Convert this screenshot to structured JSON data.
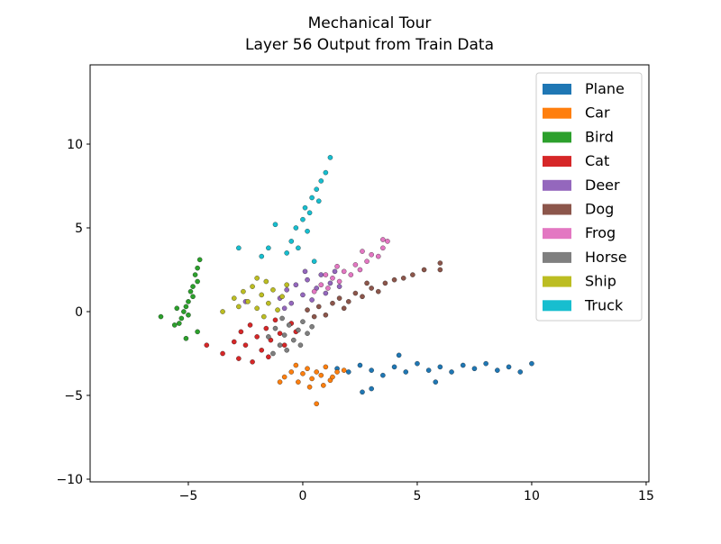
{
  "chart_data": {
    "type": "scatter",
    "title": "Mechanical Tour",
    "subtitle": "Layer 56 Output from Train Data",
    "xlim": [
      -9.29,
      15.12
    ],
    "ylim": [
      -10.16,
      14.73
    ],
    "xticks": [
      {
        "value": -5,
        "label": "−5"
      },
      0,
      5,
      10,
      15
    ],
    "yticks": [
      {
        "value": -10,
        "label": "−10"
      },
      {
        "value": -5,
        "label": "−5"
      },
      0,
      5,
      10
    ],
    "legend": "upper right",
    "series": [
      {
        "name": "Plane",
        "color": "#1f77b4",
        "x": [
          1.5,
          2,
          2.5,
          3,
          3.5,
          4,
          4.5,
          5,
          5.5,
          6,
          6.5,
          7,
          7.5,
          8,
          8.5,
          9,
          10,
          3,
          4.2,
          5.8,
          2.6,
          9.5
        ],
        "y": [
          -3.4,
          -3.6,
          -3.2,
          -3.5,
          -3.8,
          -3.3,
          -3.6,
          -3.1,
          -3.5,
          -3.3,
          -3.6,
          -3.2,
          -3.4,
          -3.1,
          -3.5,
          -3.3,
          -3.1,
          -4.6,
          -2.6,
          -4.2,
          -4.8,
          -3.6
        ]
      },
      {
        "name": "Car",
        "color": "#ff7f0e",
        "x": [
          -0.8,
          -0.5,
          -0.2,
          0,
          0.2,
          0.4,
          0.6,
          0.8,
          1,
          1.2,
          1.5,
          1.8,
          0.3,
          0.6,
          -0.3,
          0.9,
          -1,
          1.3
        ],
        "y": [
          -3.9,
          -3.6,
          -4.2,
          -3.7,
          -3.4,
          -4,
          -3.6,
          -3.8,
          -3.3,
          -4.1,
          -3.6,
          -3.5,
          -4.5,
          -5.5,
          -3.2,
          -4.4,
          -4.2,
          -3.9
        ]
      },
      {
        "name": "Bird",
        "color": "#2ca02c",
        "x": [
          -4.5,
          -4.6,
          -4.7,
          -4.6,
          -4.8,
          -4.9,
          -4.8,
          -5,
          -5.1,
          -5.2,
          -5,
          -5.3,
          -5.5,
          -5.4,
          -5.1,
          -6.2,
          -4.6,
          -5.6
        ],
        "y": [
          3.1,
          2.6,
          2.2,
          1.8,
          1.5,
          1.2,
          0.9,
          0.6,
          0.3,
          0,
          -0.2,
          -0.4,
          0.2,
          -0.7,
          -1.6,
          -0.3,
          -1.2,
          -0.8
        ]
      },
      {
        "name": "Cat",
        "color": "#d62728",
        "x": [
          -3,
          -2.7,
          -2.5,
          -2.3,
          -2,
          -1.8,
          -1.6,
          -1.4,
          -1.2,
          -1,
          -0.8,
          -0.5,
          -3.5,
          -2.2,
          -2.8,
          -4.2,
          -1.5,
          -0.3
        ],
        "y": [
          -1.8,
          -1.2,
          -2,
          -0.8,
          -1.5,
          -2.3,
          -1,
          -1.7,
          -0.5,
          -1.3,
          -2,
          -0.7,
          -2.5,
          -3,
          -2.8,
          -2,
          -2.7,
          -1.2
        ]
      },
      {
        "name": "Deer",
        "color": "#9467bd",
        "x": [
          -1,
          -0.7,
          -0.5,
          -0.3,
          0,
          0.2,
          0.4,
          0.6,
          0.8,
          1,
          1.2,
          1.4,
          -0.8,
          0.1,
          -2.5,
          1.6
        ],
        "y": [
          0.8,
          1.3,
          0.5,
          1.6,
          1,
          1.9,
          0.7,
          1.4,
          2.2,
          1.1,
          1.7,
          2.4,
          0.2,
          2.4,
          0.6,
          1.5
        ]
      },
      {
        "name": "Dog",
        "color": "#8c564b",
        "x": [
          0.2,
          0.7,
          1,
          1.3,
          1.6,
          2,
          2.3,
          2.6,
          3,
          3.3,
          3.6,
          4,
          4.4,
          4.8,
          5.3,
          6,
          6,
          1.8,
          2.8,
          0.5
        ],
        "y": [
          0.1,
          0.3,
          -0.2,
          0.5,
          0.8,
          0.6,
          1.1,
          0.9,
          1.4,
          1.2,
          1.7,
          1.9,
          2,
          2.2,
          2.5,
          2.9,
          2.5,
          0.2,
          1.7,
          -0.3
        ]
      },
      {
        "name": "Frog",
        "color": "#e377c2",
        "x": [
          0.5,
          0.8,
          1.1,
          1.3,
          1.6,
          1.8,
          2.1,
          2.3,
          2.5,
          2.8,
          3,
          3.3,
          3.5,
          3.7,
          3.5,
          1.5,
          2.6,
          1
        ],
        "y": [
          1.2,
          1.6,
          1.4,
          2,
          1.8,
          2.4,
          2.2,
          2.8,
          2.5,
          3,
          3.4,
          3.3,
          3.8,
          4.2,
          4.3,
          2.7,
          3.6,
          2.2
        ]
      },
      {
        "name": "Horse",
        "color": "#7f7f7f",
        "x": [
          -1.5,
          -1.2,
          -1,
          -0.8,
          -0.6,
          -0.4,
          -0.2,
          0,
          0.2,
          -0.7,
          -1.3,
          0.4,
          -0.1,
          -0.9
        ],
        "y": [
          -1.5,
          -1,
          -2,
          -1.4,
          -0.8,
          -1.7,
          -1.1,
          -0.6,
          -1.3,
          -2.3,
          -2.5,
          -0.9,
          -2,
          -0.4
        ]
      },
      {
        "name": "Ship",
        "color": "#bcbd22",
        "x": [
          -3,
          -2.8,
          -2.6,
          -2.4,
          -2.2,
          -2,
          -1.8,
          -1.6,
          -1.5,
          -1.3,
          -1.1,
          -0.9,
          -0.7,
          -2,
          -3.5,
          -1.7
        ],
        "y": [
          0.8,
          0.3,
          1.2,
          0.6,
          1.5,
          0.2,
          1,
          1.8,
          0.5,
          1.3,
          0.1,
          0.9,
          1.6,
          2,
          0,
          -0.3
        ]
      },
      {
        "name": "Truck",
        "color": "#17becf",
        "x": [
          -0.7,
          -0.5,
          -0.2,
          -0.3,
          0,
          0.2,
          0.1,
          0.4,
          0.3,
          0.6,
          0.8,
          0.7,
          1,
          1.2,
          -1.5,
          -1.8,
          -1.2,
          0.5,
          -2.8
        ],
        "y": [
          3.5,
          4.2,
          3.8,
          5,
          5.5,
          4.8,
          6.2,
          6.8,
          5.9,
          7.3,
          7.8,
          6.6,
          8.3,
          9.2,
          3.8,
          3.3,
          5.2,
          3,
          3.8
        ]
      }
    ]
  }
}
